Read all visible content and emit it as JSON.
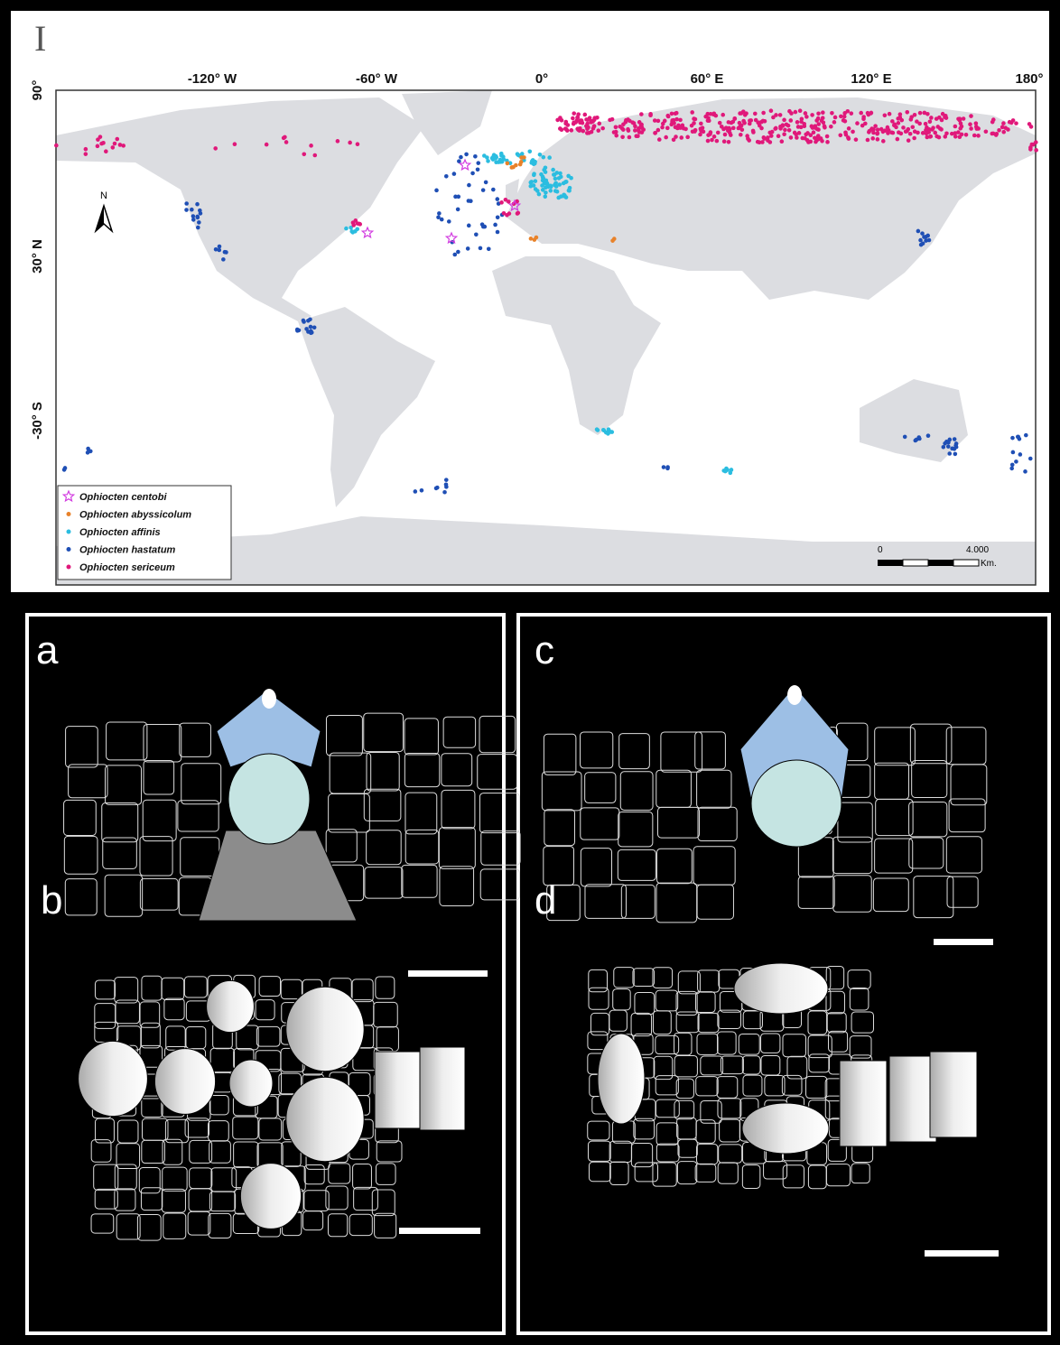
{
  "map": {
    "panel_label": "I",
    "lon_labels": [
      "-120° W",
      "-60° W",
      "0°",
      "60° E",
      "120° E",
      "180°"
    ],
    "lat_labels": [
      "90°",
      "30° N",
      "-30° S"
    ],
    "north_label": "N",
    "legend": [
      {
        "name": "Ophiocten centobi",
        "color": "#d23be0"
      },
      {
        "name": "Ophiocten abyssicolum",
        "color": "#e8822a"
      },
      {
        "name": "Ophiocten affinis",
        "color": "#2bbde0"
      },
      {
        "name": "Ophiocten hastatum",
        "color": "#1f4fb5"
      },
      {
        "name": "Ophiocten sericeum",
        "color": "#e0187a"
      }
    ],
    "scale_labels": [
      "0",
      "4.000",
      "Km."
    ]
  },
  "panels": [
    "a",
    "b",
    "c",
    "d"
  ]
}
